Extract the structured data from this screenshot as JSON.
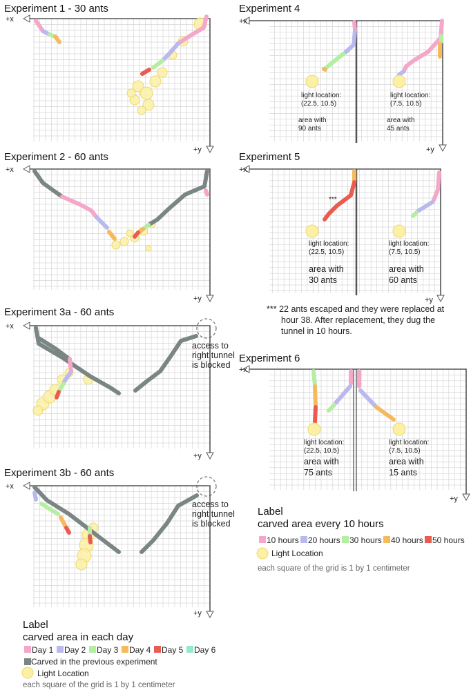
{
  "colors": {
    "day1": "#f4a7c9",
    "day2": "#b9b9ee",
    "day3": "#b4eea3",
    "day4": "#f5b95e",
    "day5": "#ea5b50",
    "day6": "#93ebcc",
    "previous": "#7b8584",
    "light": "#fbf0a6",
    "grid": "#d6d6d6"
  },
  "axis": {
    "x": "+x",
    "y": "+y"
  },
  "experiments": {
    "e1": {
      "title": "Experiment 1 - 30 ants"
    },
    "e2": {
      "title": "Experiment 2 - 60 ants"
    },
    "e3a": {
      "title": "Experiment 3a - 60 ants",
      "note": [
        "access to",
        "right tunnel",
        "is blocked"
      ]
    },
    "e3b": {
      "title": "Experiment 3b - 60 ants",
      "note": [
        "access to",
        "right tunnel",
        "is blocked"
      ]
    },
    "e4": {
      "title": "Experiment 4",
      "left": {
        "light_label": "light location:",
        "light_coord": "(22.5, 10.5)",
        "area": "area with",
        "ants": "90 ants"
      },
      "right": {
        "light_label": "light location:",
        "light_coord": "(7.5, 10.5)",
        "area": "area with",
        "ants": "45 ants"
      }
    },
    "e5": {
      "title": "Experiment 5",
      "marker": "***",
      "left": {
        "light_label": "light location:",
        "light_coord": "(22.5, 10.5)",
        "area": "area with",
        "ants": "30 ants"
      },
      "right": {
        "light_label": "light location:",
        "light_coord": "(7.5, 10.5)",
        "area": "area with",
        "ants": "60 ants"
      },
      "footnote": [
        "*** 22 ants escaped and they were replaced at",
        "hour 38. After replacement, they dug the",
        "tunnel in 10 hours."
      ]
    },
    "e6": {
      "title": "Experiment 6",
      "left": {
        "light_label": "light location:",
        "light_coord": "(22.5, 10.5)",
        "area": "area with",
        "ants": "75 ants"
      },
      "right": {
        "light_label": "light location:",
        "light_coord": "(7.5, 10.5)",
        "area": "area with",
        "ants": "15 ants"
      }
    }
  },
  "legend_days": {
    "heading": "Label",
    "subheading": "carved area in each day",
    "items": [
      "Day 1",
      "Day 2",
      "Day 3",
      "Day 4",
      "Day 5",
      "Day 6"
    ],
    "previous": "Carved in the previous experiment",
    "light": "Light Location",
    "grid_note": "each square of the grid is 1 by 1 centimeter"
  },
  "legend_hours": {
    "heading": "Label",
    "subheading": "carved area every 10 hours",
    "items": [
      "10 hours",
      "20 hours",
      "30 hours",
      "40 hours",
      "50 hours"
    ],
    "light": "Light Location",
    "grid_note": "each square of the grid is 1 by 1 centimeter"
  }
}
